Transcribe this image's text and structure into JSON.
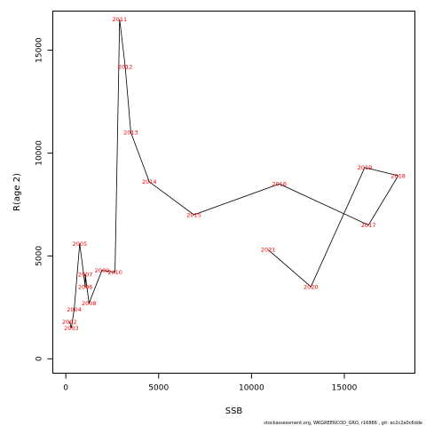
{
  "chart_data": {
    "type": "line",
    "title": "",
    "xlabel": "SSB",
    "ylabel": "R(age 2)",
    "xlim": [
      -700,
      18800
    ],
    "ylim": [
      -700,
      16900
    ],
    "x_ticks": [
      0,
      5000,
      10000,
      15000
    ],
    "y_ticks": [
      0,
      5000,
      10000,
      15000
    ],
    "x_tick_labels": [
      "0",
      "5000",
      "10000",
      "15000"
    ],
    "y_tick_labels": [
      "0",
      "5000",
      "10000",
      "15000"
    ],
    "grid": false,
    "line_color": "#000000",
    "label_color": "#ff0000",
    "points": [
      {
        "label": "2002",
        "x": 200,
        "y": 1800
      },
      {
        "label": "2003",
        "x": 300,
        "y": 1500
      },
      {
        "label": "2004",
        "x": 450,
        "y": 2400
      },
      {
        "label": "2005",
        "x": 750,
        "y": 5600
      },
      {
        "label": "2006",
        "x": 1050,
        "y": 3500
      },
      {
        "label": "2007",
        "x": 1050,
        "y": 4100
      },
      {
        "label": "2008",
        "x": 1250,
        "y": 2700
      },
      {
        "label": "2009",
        "x": 1950,
        "y": 4300
      },
      {
        "label": "2010",
        "x": 2650,
        "y": 4200
      },
      {
        "label": "2011",
        "x": 2900,
        "y": 16500
      },
      {
        "label": "2012",
        "x": 3200,
        "y": 14200
      },
      {
        "label": "2013",
        "x": 3500,
        "y": 11000
      },
      {
        "label": "2014",
        "x": 4500,
        "y": 8600
      },
      {
        "label": "2015",
        "x": 6900,
        "y": 7000
      },
      {
        "label": "2016",
        "x": 11500,
        "y": 8500
      },
      {
        "label": "2017",
        "x": 16300,
        "y": 6500
      },
      {
        "label": "2018",
        "x": 17900,
        "y": 8900
      },
      {
        "label": "2019",
        "x": 16100,
        "y": 9300
      },
      {
        "label": "2020",
        "x": 13200,
        "y": 3500
      },
      {
        "label": "2021",
        "x": 10900,
        "y": 5300
      }
    ]
  },
  "footer": {
    "credit": "stockassessment.org,  WKGREENCOD_GRO,  r16886  ,  git:  ec2c2a0c6dde"
  }
}
